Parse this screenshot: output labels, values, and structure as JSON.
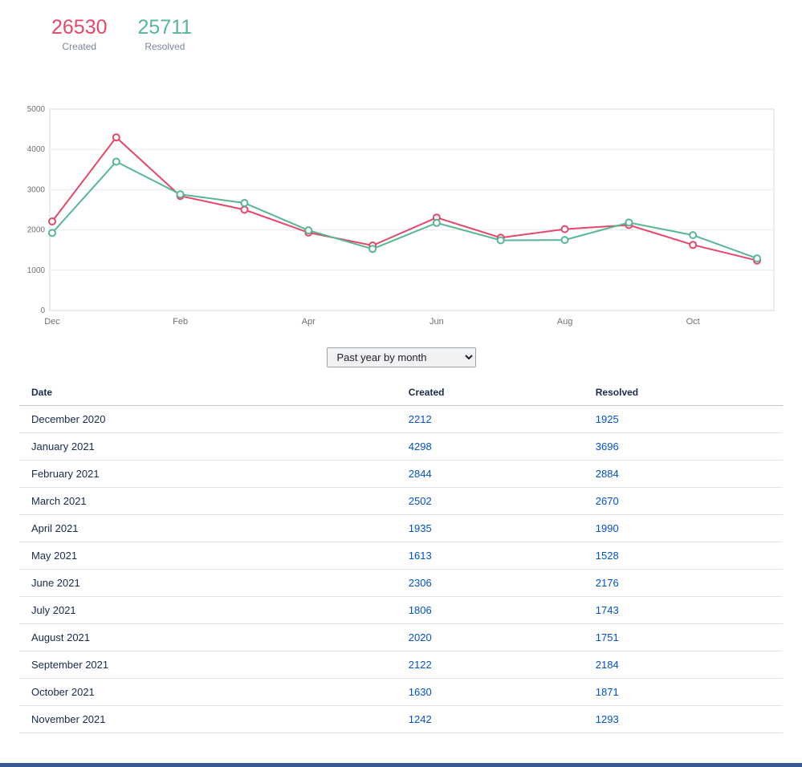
{
  "summary": {
    "created": {
      "value": "26530",
      "label": "Created"
    },
    "resolved": {
      "value": "25711",
      "label": "Resolved"
    }
  },
  "period_select": {
    "value": "Past year by month",
    "options": [
      "Past year by month"
    ]
  },
  "table": {
    "headers": [
      "Date",
      "Created",
      "Resolved"
    ],
    "rows": [
      {
        "date": "December 2020",
        "created": "2212",
        "resolved": "1925"
      },
      {
        "date": "January 2021",
        "created": "4298",
        "resolved": "3696"
      },
      {
        "date": "February 2021",
        "created": "2844",
        "resolved": "2884"
      },
      {
        "date": "March 2021",
        "created": "2502",
        "resolved": "2670"
      },
      {
        "date": "April 2021",
        "created": "1935",
        "resolved": "1990"
      },
      {
        "date": "May 2021",
        "created": "1613",
        "resolved": "1528"
      },
      {
        "date": "June 2021",
        "created": "2306",
        "resolved": "2176"
      },
      {
        "date": "July 2021",
        "created": "1806",
        "resolved": "1743"
      },
      {
        "date": "August 2021",
        "created": "2020",
        "resolved": "1751"
      },
      {
        "date": "September 2021",
        "created": "2122",
        "resolved": "2184"
      },
      {
        "date": "October 2021",
        "created": "1630",
        "resolved": "1871"
      },
      {
        "date": "November 2021",
        "created": "1242",
        "resolved": "1293"
      }
    ]
  },
  "chart_data": {
    "type": "line",
    "title": "",
    "xlabel": "",
    "ylabel": "",
    "x": [
      "December 2020",
      "January 2021",
      "February 2021",
      "March 2021",
      "April 2021",
      "May 2021",
      "June 2021",
      "July 2021",
      "August 2021",
      "September 2021",
      "October 2021",
      "November 2021"
    ],
    "x_tick_labels": [
      "Dec",
      "Feb",
      "Apr",
      "Jun",
      "Aug",
      "Oct"
    ],
    "x_tick_indices": [
      0,
      2,
      4,
      6,
      8,
      10
    ],
    "series": [
      {
        "name": "Created",
        "color": "#e5476a",
        "values": [
          2212,
          4298,
          2844,
          2502,
          1935,
          1613,
          2306,
          1806,
          2020,
          2122,
          1630,
          1242
        ]
      },
      {
        "name": "Resolved",
        "color": "#58b793",
        "values": [
          1925,
          3696,
          2884,
          2670,
          1990,
          1528,
          2176,
          1743,
          1751,
          2184,
          1871,
          1293
        ]
      }
    ],
    "ylim": [
      0,
      5000
    ],
    "y_ticks": [
      0,
      1000,
      2000,
      3000,
      4000,
      5000
    ],
    "grid": true,
    "legend_position": "none",
    "marker": "open-circle"
  },
  "colors": {
    "created": "#e5476a",
    "resolved": "#58b793",
    "link": "#0052cc",
    "header_text": "#172b4d",
    "bottom_bar": "#3a5a97"
  }
}
